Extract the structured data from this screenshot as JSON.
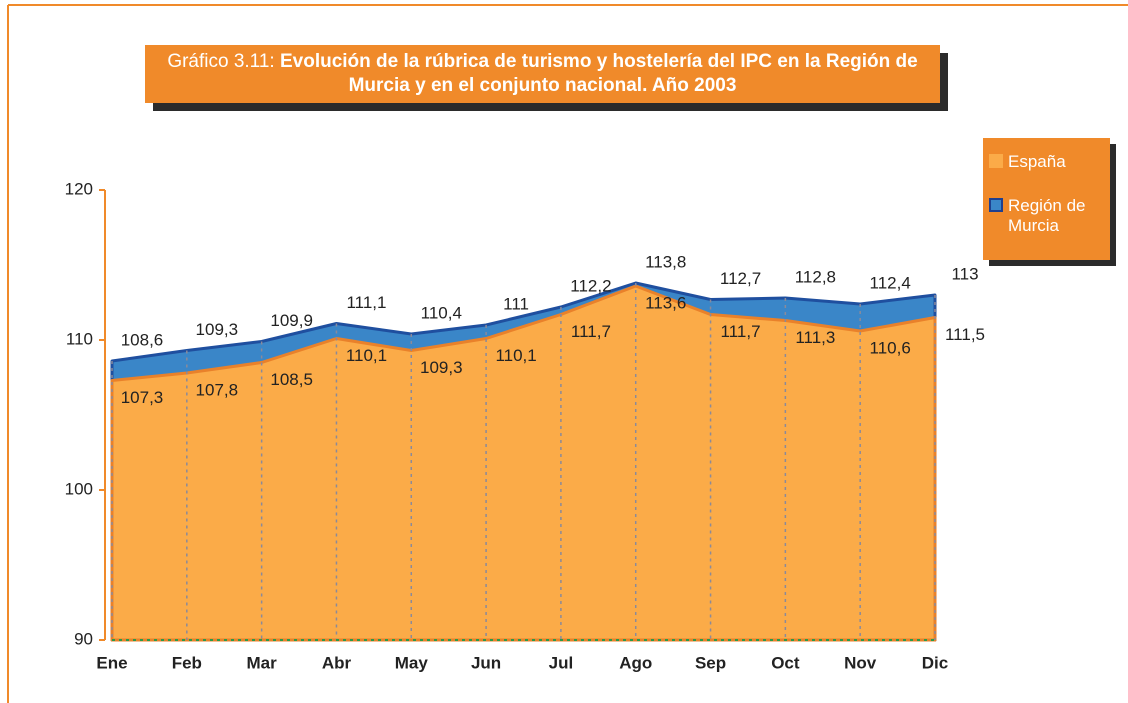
{
  "chart_data": {
    "type": "area",
    "title_prefix": "Gráfico 3.11:",
    "title": "Evolución de la rúbrica de turismo y hostelería del IPC en la Región de Murcia y en el conjunto nacional. Año 2003",
    "categories": [
      "Ene",
      "Feb",
      "Mar",
      "Abr",
      "May",
      "Jun",
      "Jul",
      "Ago",
      "Sep",
      "Oct",
      "Nov",
      "Dic"
    ],
    "series": [
      {
        "name": "España",
        "color": "#fbab48",
        "values": [
          107.3,
          107.8,
          108.5,
          110.1,
          109.3,
          110.1,
          111.7,
          113.6,
          111.7,
          111.3,
          110.6,
          111.5
        ],
        "value_labels": [
          "107,3",
          "107,8",
          "108,5",
          "110,1",
          "109,3",
          "110,1",
          "111,7",
          "113,6",
          "111,7",
          "111,3",
          "110,6",
          "111,5"
        ]
      },
      {
        "name": "Región de Murcia",
        "color": "#3a86c8",
        "values": [
          108.6,
          109.3,
          109.9,
          111.1,
          110.4,
          111,
          112.2,
          113.8,
          112.7,
          112.8,
          112.4,
          113
        ],
        "value_labels": [
          "108,6",
          "109,3",
          "109,9",
          "111,1",
          "110,4",
          "111",
          "112,2",
          "113,8",
          "112,7",
          "112,8",
          "112,4",
          "113"
        ]
      }
    ],
    "ylim": [
      90,
      120
    ],
    "yticks": [
      90,
      100,
      110,
      120
    ],
    "legend": "right"
  }
}
